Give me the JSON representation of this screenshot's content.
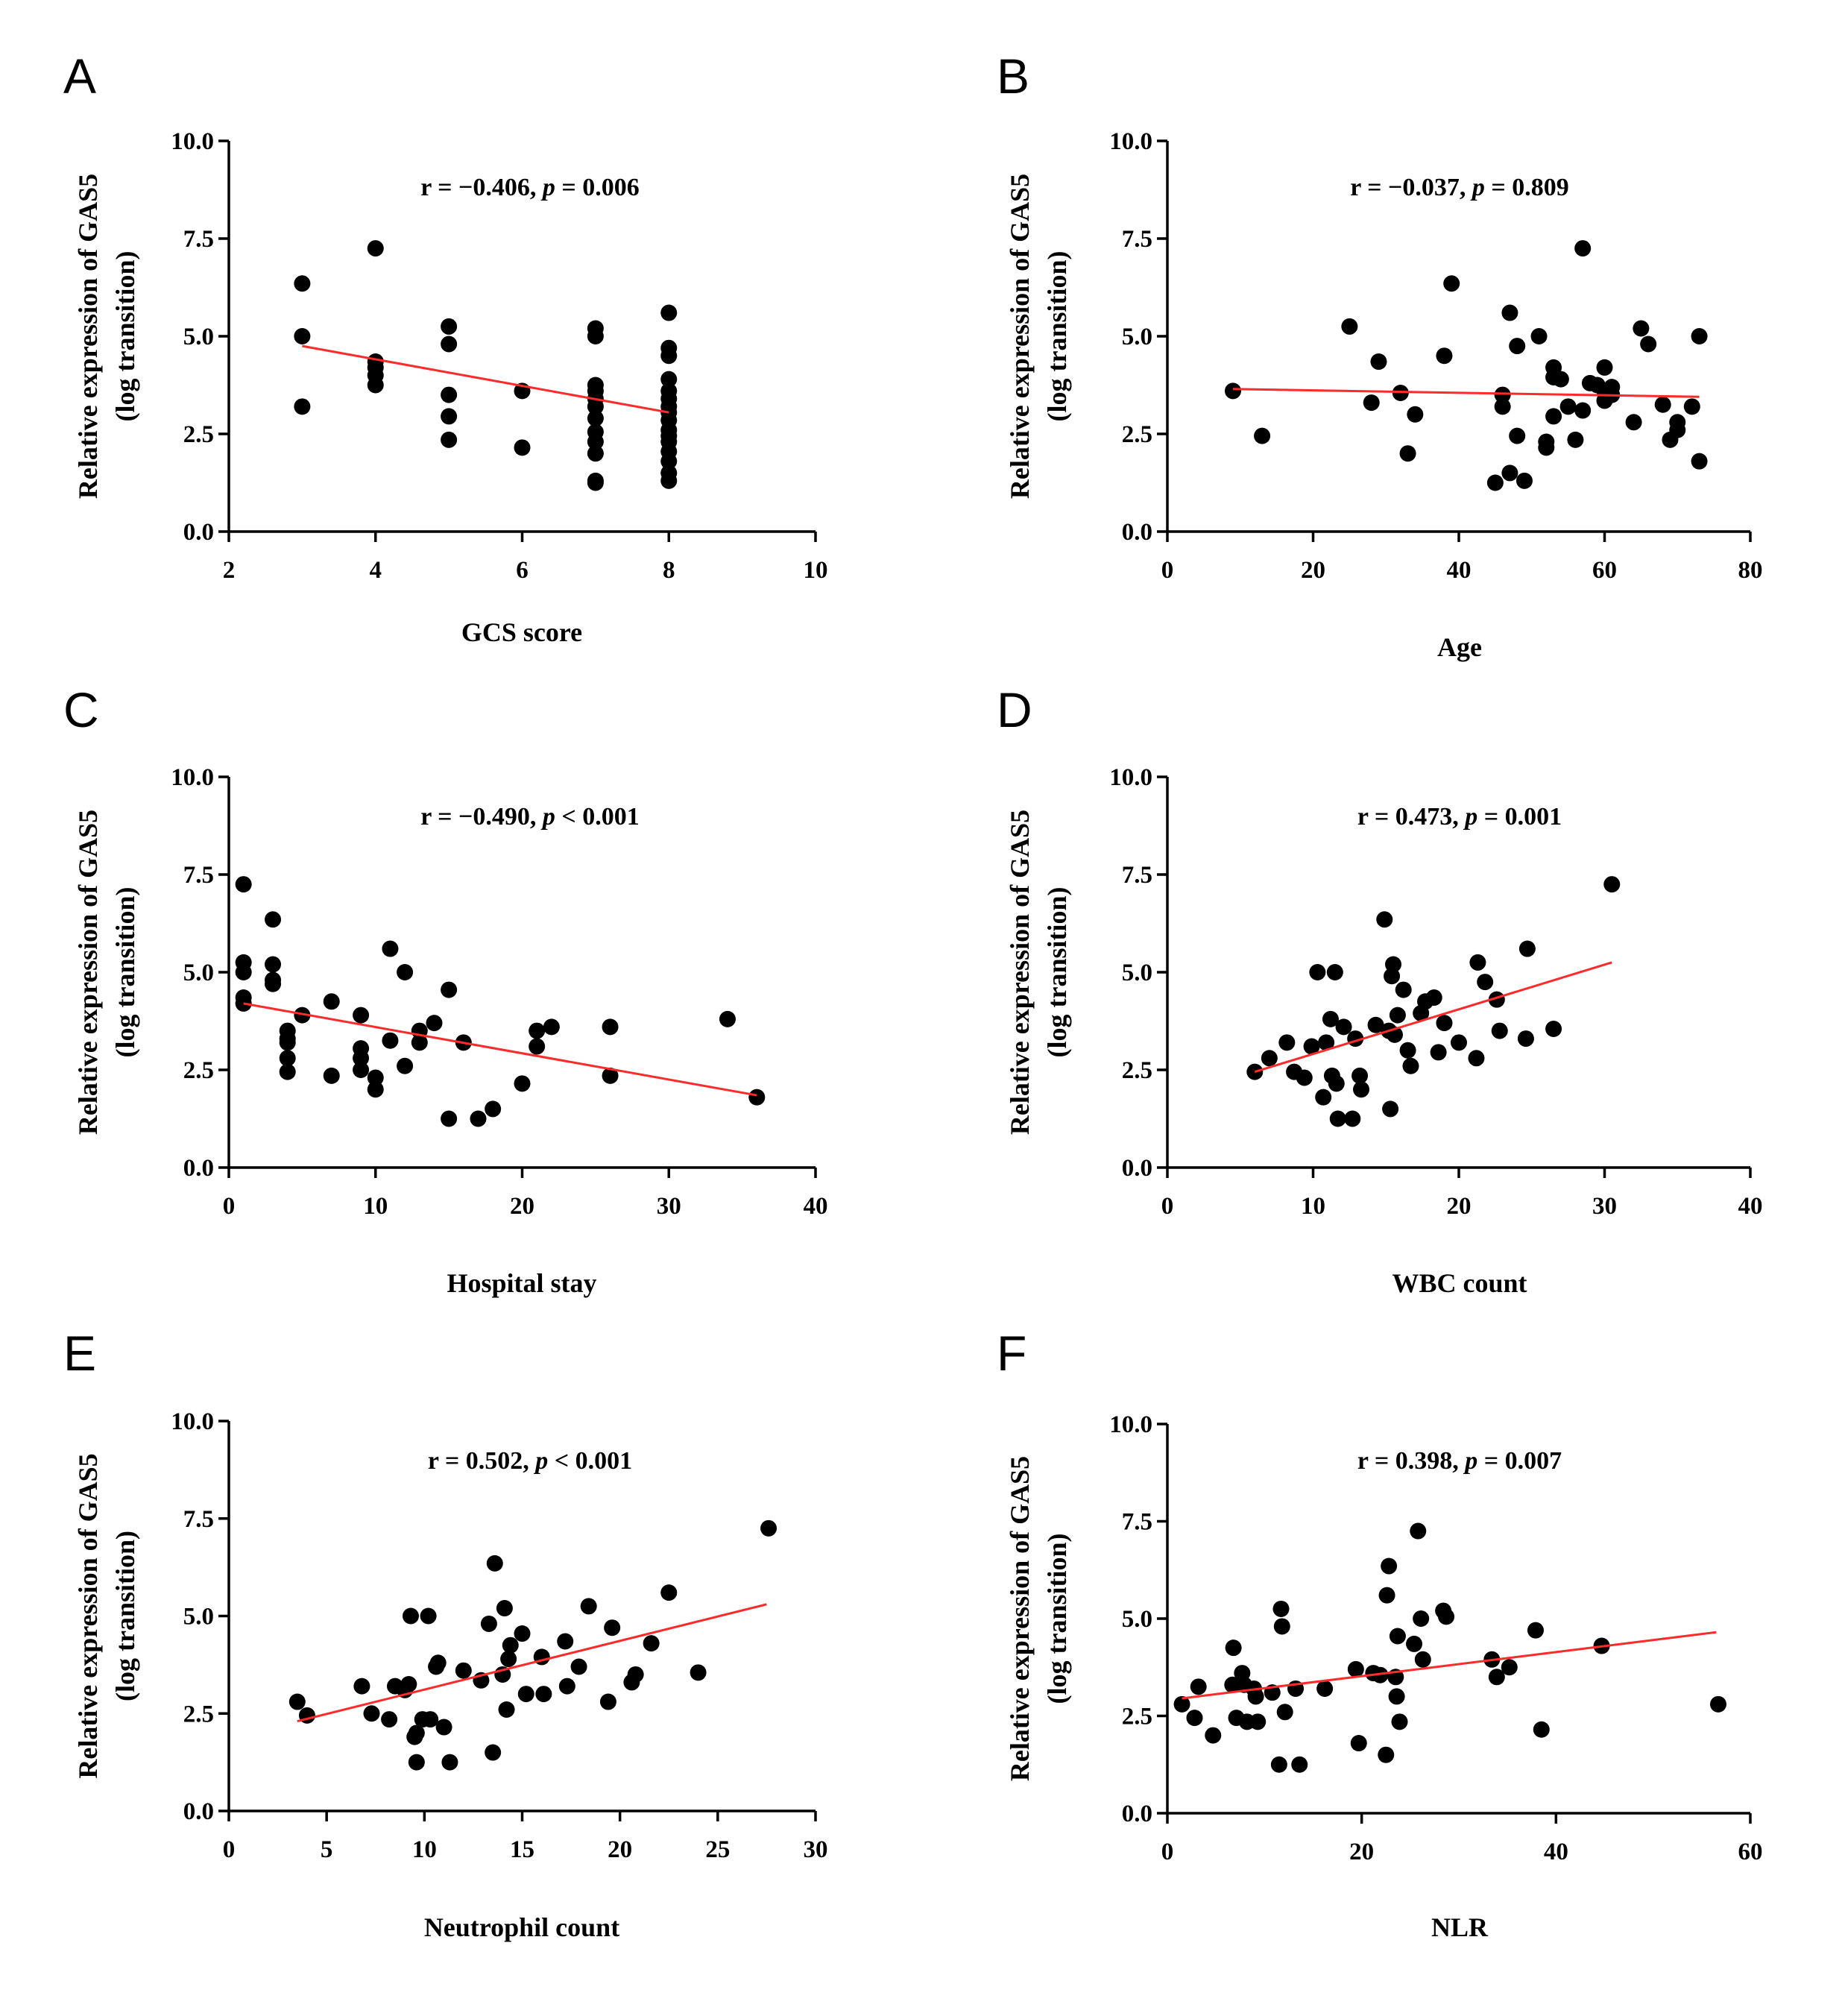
{
  "colors": {
    "points": "#000000",
    "fit_line": "#ff2a2a",
    "background": "#ffffff"
  },
  "chart_data": [
    {
      "type": "scatter",
      "panel": "A",
      "xlabel": "GCS score",
      "ylabel": "Relative expression of GAS5",
      "ylabel2": "(log transition)",
      "stat_prefix": "r = −0.406, ",
      "stat_p": "p",
      "stat_suffix": " = 0.006",
      "xlim": [
        2,
        10
      ],
      "xticks": [
        2,
        4,
        6,
        8,
        10
      ],
      "xtick_labels": [
        "2",
        "4",
        "6",
        "8",
        "10"
      ],
      "ylim": [
        0,
        10
      ],
      "yticks": [
        0,
        2.5,
        5,
        7.5,
        10
      ],
      "ytick_labels": [
        "0.0",
        "2.5",
        "5.0",
        "7.5",
        "10.0"
      ],
      "fit": [
        [
          3,
          4.75
        ],
        [
          8,
          3.05
        ]
      ],
      "points": [
        [
          3,
          6.35
        ],
        [
          3,
          5.0
        ],
        [
          3,
          3.2
        ],
        [
          4,
          7.25
        ],
        [
          4,
          4.35
        ],
        [
          4,
          4.2
        ],
        [
          4,
          4.0
        ],
        [
          4,
          3.75
        ],
        [
          5,
          5.25
        ],
        [
          5,
          4.8
        ],
        [
          5,
          3.5
        ],
        [
          5,
          2.95
        ],
        [
          5,
          2.35
        ],
        [
          6,
          3.6
        ],
        [
          6,
          2.15
        ],
        [
          7,
          5.2
        ],
        [
          7,
          5.0
        ],
        [
          7,
          3.75
        ],
        [
          7,
          3.6
        ],
        [
          7,
          3.4
        ],
        [
          7,
          3.2
        ],
        [
          7,
          2.9
        ],
        [
          7,
          2.55
        ],
        [
          7,
          2.3
        ],
        [
          7,
          2.0
        ],
        [
          7,
          1.3
        ],
        [
          7,
          1.25
        ],
        [
          8,
          5.6
        ],
        [
          8,
          4.7
        ],
        [
          8,
          4.5
        ],
        [
          8,
          3.9
        ],
        [
          8,
          3.6
        ],
        [
          8,
          3.4
        ],
        [
          8,
          3.2
        ],
        [
          8,
          3.05
        ],
        [
          8,
          2.85
        ],
        [
          8,
          2.6
        ],
        [
          8,
          2.45
        ],
        [
          8,
          2.3
        ],
        [
          8,
          2.05
        ],
        [
          8,
          1.8
        ],
        [
          8,
          1.5
        ],
        [
          8,
          1.3
        ]
      ]
    },
    {
      "type": "scatter",
      "panel": "B",
      "xlabel": "Age",
      "ylabel": "Relative expression of GAS5",
      "ylabel2": "(log transition)",
      "stat_prefix": "r = −0.037, ",
      "stat_p": "p",
      "stat_suffix": " = 0.809",
      "xlim": [
        0,
        80
      ],
      "xticks": [
        0,
        20,
        40,
        60,
        80
      ],
      "xtick_labels": [
        "0",
        "20",
        "40",
        "60",
        "80"
      ],
      "ylim": [
        0,
        10
      ],
      "yticks": [
        0,
        2.5,
        5,
        7.5,
        10
      ],
      "ytick_labels": [
        "0.0",
        "2.5",
        "5.0",
        "7.5",
        "10.0"
      ],
      "fit": [
        [
          9,
          3.65
        ],
        [
          73,
          3.45
        ]
      ],
      "points": [
        [
          9,
          3.6
        ],
        [
          13,
          2.45
        ],
        [
          25,
          5.25
        ],
        [
          28,
          3.3
        ],
        [
          29,
          4.35
        ],
        [
          32,
          3.55
        ],
        [
          34,
          3.0
        ],
        [
          33,
          2.0
        ],
        [
          38,
          4.5
        ],
        [
          39,
          6.35
        ],
        [
          45,
          1.25
        ],
        [
          46,
          3.5
        ],
        [
          46,
          3.2
        ],
        [
          47,
          5.6
        ],
        [
          47,
          1.5
        ],
        [
          48,
          4.75
        ],
        [
          48,
          2.45
        ],
        [
          49,
          1.3
        ],
        [
          51,
          5.0
        ],
        [
          52,
          2.3
        ],
        [
          52,
          2.15
        ],
        [
          53,
          4.2
        ],
        [
          53,
          3.95
        ],
        [
          53,
          2.95
        ],
        [
          54,
          3.9
        ],
        [
          55,
          3.2
        ],
        [
          56,
          2.35
        ],
        [
          57,
          7.25
        ],
        [
          57,
          3.1
        ],
        [
          58,
          3.8
        ],
        [
          59,
          3.75
        ],
        [
          60,
          4.2
        ],
        [
          60,
          3.6
        ],
        [
          60,
          3.35
        ],
        [
          61,
          3.7
        ],
        [
          61,
          3.5
        ],
        [
          64,
          2.8
        ],
        [
          65,
          5.2
        ],
        [
          66,
          4.8
        ],
        [
          68,
          3.25
        ],
        [
          69,
          2.35
        ],
        [
          70,
          2.6
        ],
        [
          70,
          2.8
        ],
        [
          72,
          3.2
        ],
        [
          73,
          5.0
        ],
        [
          73,
          1.8
        ]
      ]
    },
    {
      "type": "scatter",
      "panel": "C",
      "xlabel": "Hospital stay",
      "ylabel": "Relative expression of GAS5",
      "ylabel2": "(log transition)",
      "stat_prefix": "r = −0.490, ",
      "stat_p": "p",
      "stat_suffix": " < 0.001",
      "xlim": [
        0,
        40
      ],
      "xticks": [
        0,
        10,
        20,
        30,
        40
      ],
      "xtick_labels": [
        "0",
        "10",
        "20",
        "30",
        "40"
      ],
      "ylim": [
        0,
        10
      ],
      "yticks": [
        0,
        2.5,
        5,
        7.5,
        10
      ],
      "ytick_labels": [
        "0.0",
        "2.5",
        "5.0",
        "7.5",
        "10.0"
      ],
      "fit": [
        [
          1,
          4.2
        ],
        [
          36,
          1.85
        ]
      ],
      "points": [
        [
          1,
          7.25
        ],
        [
          1,
          5.25
        ],
        [
          1,
          5.0
        ],
        [
          1,
          4.35
        ],
        [
          1,
          4.2
        ],
        [
          3,
          6.35
        ],
        [
          3,
          5.2
        ],
        [
          3,
          4.8
        ],
        [
          3,
          4.7
        ],
        [
          4,
          3.5
        ],
        [
          4,
          3.3
        ],
        [
          4,
          3.2
        ],
        [
          4,
          2.8
        ],
        [
          4,
          2.45
        ],
        [
          5,
          3.9
        ],
        [
          7,
          4.25
        ],
        [
          7,
          2.35
        ],
        [
          9,
          3.9
        ],
        [
          9,
          3.05
        ],
        [
          9,
          2.8
        ],
        [
          9,
          2.5
        ],
        [
          10,
          2.3
        ],
        [
          10,
          2.0
        ],
        [
          11,
          5.6
        ],
        [
          11,
          3.25
        ],
        [
          12,
          5.0
        ],
        [
          12,
          2.6
        ],
        [
          13,
          3.5
        ],
        [
          13,
          3.2
        ],
        [
          14,
          3.7
        ],
        [
          15,
          4.55
        ],
        [
          15,
          1.25
        ],
        [
          16,
          3.2
        ],
        [
          17,
          1.25
        ],
        [
          18,
          1.5
        ],
        [
          20,
          2.15
        ],
        [
          21,
          3.5
        ],
        [
          21,
          3.1
        ],
        [
          22,
          3.6
        ],
        [
          26,
          3.6
        ],
        [
          26,
          2.35
        ],
        [
          34,
          3.8
        ],
        [
          36,
          1.8
        ]
      ]
    },
    {
      "type": "scatter",
      "panel": "D",
      "xlabel": "WBC count",
      "ylabel": "Relative expression of GAS5",
      "ylabel2": "(log transition)",
      "stat_prefix": "r = 0.473, ",
      "stat_p": "p",
      "stat_suffix": " = 0.001",
      "xlim": [
        0,
        40
      ],
      "xticks": [
        0,
        10,
        20,
        30,
        40
      ],
      "xtick_labels": [
        "0",
        "10",
        "20",
        "30",
        "40"
      ],
      "ylim": [
        0,
        10
      ],
      "yticks": [
        0,
        2.5,
        5,
        7.5,
        10
      ],
      "ytick_labels": [
        "0.0",
        "2.5",
        "5.0",
        "7.5",
        "10.0"
      ],
      "fit": [
        [
          6,
          2.45
        ],
        [
          30.5,
          5.25
        ]
      ],
      "points": [
        [
          6,
          2.45
        ],
        [
          7,
          2.8
        ],
        [
          8.2,
          3.2
        ],
        [
          8.7,
          2.45
        ],
        [
          9.4,
          2.3
        ],
        [
          9.9,
          3.1
        ],
        [
          10.3,
          5.0
        ],
        [
          10.7,
          1.8
        ],
        [
          10.9,
          3.2
        ],
        [
          11.2,
          3.8
        ],
        [
          11.3,
          2.35
        ],
        [
          11.5,
          5.0
        ],
        [
          11.6,
          2.15
        ],
        [
          11.7,
          1.25
        ],
        [
          12.1,
          3.6
        ],
        [
          12.7,
          1.25
        ],
        [
          12.9,
          3.3
        ],
        [
          13.2,
          2.35
        ],
        [
          13.3,
          2.0
        ],
        [
          14.3,
          3.65
        ],
        [
          14.9,
          6.35
        ],
        [
          15.2,
          3.5
        ],
        [
          15.3,
          1.5
        ],
        [
          15.4,
          4.9
        ],
        [
          15.5,
          5.2
        ],
        [
          15.6,
          3.4
        ],
        [
          15.8,
          3.9
        ],
        [
          16.2,
          4.55
        ],
        [
          16.5,
          3.0
        ],
        [
          16.7,
          2.6
        ],
        [
          17.4,
          3.95
        ],
        [
          17.7,
          4.25
        ],
        [
          18.3,
          4.35
        ],
        [
          18.6,
          2.95
        ],
        [
          19.0,
          3.7
        ],
        [
          20.0,
          3.2
        ],
        [
          21.2,
          2.8
        ],
        [
          21.3,
          5.25
        ],
        [
          21.8,
          4.75
        ],
        [
          22.6,
          4.3
        ],
        [
          22.8,
          3.5
        ],
        [
          24.6,
          3.3
        ],
        [
          24.7,
          5.6
        ],
        [
          26.5,
          3.55
        ],
        [
          30.5,
          7.25
        ]
      ]
    },
    {
      "type": "scatter",
      "panel": "E",
      "xlabel": "Neutrophil count",
      "ylabel": "Relative expression of GAS5",
      "ylabel2": "(log transition)",
      "stat_prefix": "r = 0.502, ",
      "stat_p": "p",
      "stat_suffix": " < 0.001",
      "xlim": [
        0,
        30
      ],
      "xticks": [
        0,
        5,
        10,
        15,
        20,
        25,
        30
      ],
      "xtick_labels": [
        "0",
        "5",
        "10",
        "15",
        "20",
        "25",
        "30"
      ],
      "ylim": [
        0,
        10
      ],
      "yticks": [
        0,
        2.5,
        5,
        7.5,
        10
      ],
      "ytick_labels": [
        "0.0",
        "2.5",
        "5.0",
        "7.5",
        "10.0"
      ],
      "fit": [
        [
          3.5,
          2.3
        ],
        [
          27.5,
          5.3
        ]
      ],
      "points": [
        [
          3.5,
          2.8
        ],
        [
          4,
          2.45
        ],
        [
          6.8,
          3.2
        ],
        [
          7.3,
          2.5
        ],
        [
          8.2,
          2.35
        ],
        [
          8.5,
          3.2
        ],
        [
          9,
          3.1
        ],
        [
          9.2,
          3.25
        ],
        [
          9.3,
          5.0
        ],
        [
          9.5,
          1.9
        ],
        [
          9.6,
          2.0
        ],
        [
          9.6,
          1.25
        ],
        [
          9.9,
          2.35
        ],
        [
          10.2,
          5.0
        ],
        [
          10.3,
          2.35
        ],
        [
          10.6,
          3.7
        ],
        [
          10.7,
          3.8
        ],
        [
          11,
          2.15
        ],
        [
          11.3,
          1.25
        ],
        [
          12,
          3.6
        ],
        [
          12.9,
          3.35
        ],
        [
          13.3,
          4.8
        ],
        [
          13.5,
          1.5
        ],
        [
          13.6,
          6.35
        ],
        [
          14,
          3.5
        ],
        [
          14.1,
          5.2
        ],
        [
          14.2,
          2.6
        ],
        [
          14.3,
          3.9
        ],
        [
          14.4,
          4.25
        ],
        [
          15,
          4.55
        ],
        [
          15.2,
          3.0
        ],
        [
          16,
          3.95
        ],
        [
          16.1,
          3.0
        ],
        [
          17.2,
          4.35
        ],
        [
          17.3,
          3.2
        ],
        [
          17.9,
          3.7
        ],
        [
          18.4,
          5.25
        ],
        [
          19.4,
          2.8
        ],
        [
          19.6,
          4.7
        ],
        [
          20.6,
          3.3
        ],
        [
          20.8,
          3.5
        ],
        [
          21.6,
          4.3
        ],
        [
          22.5,
          5.6
        ],
        [
          24,
          3.55
        ],
        [
          27.6,
          7.25
        ]
      ]
    },
    {
      "type": "scatter",
      "panel": "F",
      "xlabel": "NLR",
      "ylabel": "Relative expression of GAS5",
      "ylabel2": "(log transition)",
      "stat_prefix": "r = 0.398, ",
      "stat_p": "p",
      "stat_suffix": " = 0.007",
      "xlim": [
        0,
        60
      ],
      "xticks": [
        0,
        20,
        40,
        60
      ],
      "xtick_labels": [
        "0",
        "20",
        "40",
        "60"
      ],
      "ylim": [
        0,
        10
      ],
      "yticks": [
        0,
        2.5,
        5,
        7.5,
        10
      ],
      "ytick_labels": [
        "0.0",
        "2.5",
        "5.0",
        "7.5",
        "10.0"
      ],
      "fit": [
        [
          1.5,
          2.95
        ],
        [
          56.5,
          4.65
        ]
      ],
      "points": [
        [
          1.5,
          2.8
        ],
        [
          2.8,
          2.45
        ],
        [
          3.2,
          3.25
        ],
        [
          4.7,
          2.0
        ],
        [
          6.7,
          3.3
        ],
        [
          6.8,
          4.25
        ],
        [
          7.1,
          2.45
        ],
        [
          7.7,
          3.6
        ],
        [
          7.9,
          3.3
        ],
        [
          8.2,
          2.35
        ],
        [
          8.9,
          3.2
        ],
        [
          9.1,
          3.0
        ],
        [
          9.3,
          2.35
        ],
        [
          10.8,
          3.1
        ],
        [
          11.5,
          1.25
        ],
        [
          11.7,
          5.25
        ],
        [
          11.8,
          4.8
        ],
        [
          12.1,
          2.6
        ],
        [
          13.2,
          3.2
        ],
        [
          13.6,
          1.25
        ],
        [
          16.2,
          3.2
        ],
        [
          19.4,
          3.7
        ],
        [
          19.7,
          1.8
        ],
        [
          21.2,
          3.6
        ],
        [
          21.9,
          3.55
        ],
        [
          22.5,
          1.5
        ],
        [
          22.6,
          5.6
        ],
        [
          22.8,
          6.35
        ],
        [
          23.5,
          3.5
        ],
        [
          23.6,
          3.0
        ],
        [
          23.7,
          4.55
        ],
        [
          23.9,
          2.35
        ],
        [
          25.4,
          4.35
        ],
        [
          25.8,
          7.25
        ],
        [
          26.1,
          5.0
        ],
        [
          26.3,
          3.95
        ],
        [
          28.4,
          5.2
        ],
        [
          28.7,
          5.05
        ],
        [
          33.4,
          3.95
        ],
        [
          33.9,
          3.5
        ],
        [
          35.2,
          3.75
        ],
        [
          37.9,
          4.7
        ],
        [
          38.5,
          2.15
        ],
        [
          44.7,
          4.3
        ],
        [
          56.7,
          2.8
        ]
      ]
    }
  ]
}
